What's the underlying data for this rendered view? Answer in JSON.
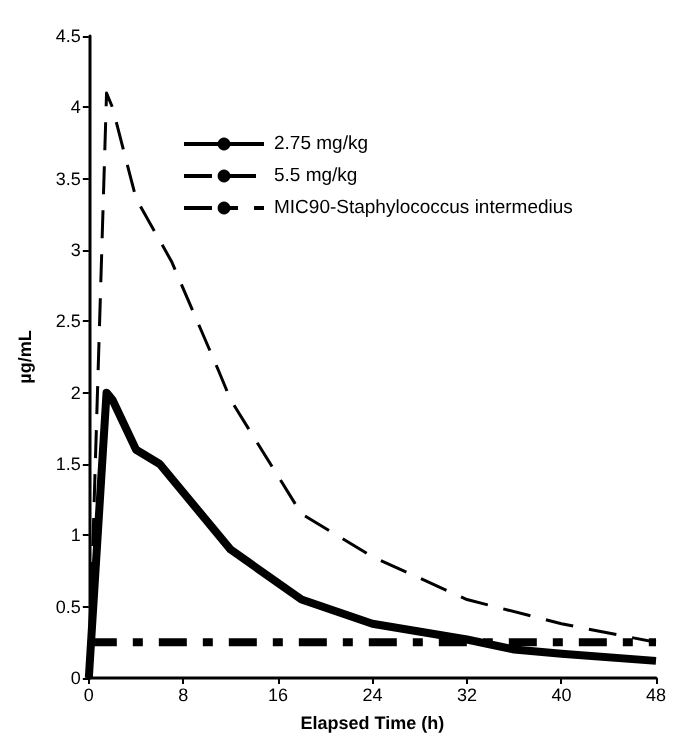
{
  "chart_data": {
    "type": "line",
    "xlabel": "Elapsed Time (h)",
    "ylabel": "µg/mL",
    "xlim": [
      0,
      48
    ],
    "xticks": [
      0,
      8,
      16,
      24,
      32,
      40,
      48
    ],
    "ylim": [
      0,
      4.5
    ],
    "yticks": [
      0,
      0.5,
      1,
      1.5,
      2,
      2.5,
      3,
      3.5,
      4,
      4.5
    ],
    "grid": false,
    "legend": "top right",
    "marker": "none",
    "series": [
      {
        "name": "2.75 mg/kg",
        "color": "#000000",
        "line_style": "solid",
        "x": [
          0,
          1.5,
          2,
          4,
          6,
          12,
          18,
          24,
          32,
          36,
          40,
          48
        ],
        "values": [
          0,
          2.0,
          1.95,
          1.6,
          1.5,
          0.9,
          0.55,
          0.38,
          0.27,
          0.2,
          0.17,
          0.12
        ]
      },
      {
        "name": "5.5 mg/kg",
        "color": "#000000",
        "line_style": "dashed",
        "x": [
          0,
          1.5,
          2,
          4,
          7,
          11,
          12,
          18,
          24,
          32,
          40,
          48
        ],
        "values": [
          0,
          4.1,
          4.0,
          3.36,
          2.92,
          2.15,
          1.95,
          1.15,
          0.85,
          0.55,
          0.38,
          0.25
        ]
      },
      {
        "name": "MIC90-Staphylococcus intermedius",
        "color": "#000000",
        "line_style": "dashdot",
        "x": [
          0,
          48
        ],
        "values": [
          0.25,
          0.25
        ]
      }
    ]
  }
}
